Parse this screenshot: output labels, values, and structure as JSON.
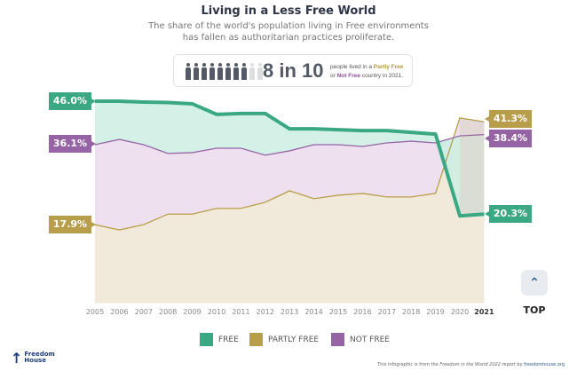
{
  "header": {
    "title": "Living in a Less Free World",
    "subtitle_line1": "The share of the world's population living in Free environments",
    "subtitle_line2": "has fallen as authoritarian practices proliferate."
  },
  "info": {
    "big": "8 in 10",
    "text1": "people lived in a ",
    "partly": "Partly Free",
    "text2": "or ",
    "not": "Not Free",
    "text3": " country in 2021.",
    "people_total": 10,
    "people_highlighted": 8
  },
  "colors": {
    "free": "#3aa882",
    "partly_free": "#b89e4b",
    "not_free": "#9664a4",
    "free_fill": "#cdeee4",
    "not_free_fill": "#eee0ee",
    "partly_fill": "#f1eadb"
  },
  "chart_data": {
    "type": "line",
    "x": [
      2005,
      2006,
      2007,
      2008,
      2009,
      2010,
      2011,
      2012,
      2013,
      2014,
      2015,
      2016,
      2017,
      2018,
      2019,
      2020,
      2021
    ],
    "x_tick_labels": [
      "2005",
      "2006",
      "2007",
      "2008",
      "2009",
      "2010",
      "2011",
      "2012",
      "2013",
      "2014",
      "2015",
      "2016",
      "2017",
      "2018",
      "2019",
      "2020",
      "2021"
    ],
    "ylim": [
      0,
      50
    ],
    "series": [
      {
        "name": "FREE",
        "values": [
          46.0,
          46.0,
          45.8,
          45.7,
          45.4,
          43.0,
          43.2,
          43.2,
          39.7,
          39.7,
          39.5,
          39.3,
          39.3,
          38.9,
          38.5,
          19.9,
          20.3
        ]
      },
      {
        "name": "PARTLY FREE",
        "values": [
          17.9,
          16.7,
          17.9,
          20.3,
          20.3,
          21.6,
          21.6,
          23.0,
          25.6,
          23.8,
          24.6,
          25.0,
          24.2,
          24.2,
          25.0,
          42.2,
          41.3
        ]
      },
      {
        "name": "NOT FREE",
        "values": [
          36.1,
          37.3,
          36.1,
          34.1,
          34.3,
          35.3,
          35.3,
          33.7,
          34.7,
          36.1,
          36.1,
          35.7,
          36.5,
          36.9,
          36.5,
          38.1,
          38.4
        ]
      }
    ],
    "start_labels": {
      "free": "46.0%",
      "not_free": "36.1%",
      "partly_free": "17.9%"
    },
    "end_labels": {
      "partly_free": "41.3%",
      "not_free": "38.4%",
      "free": "20.3%"
    },
    "legend": [
      "FREE",
      "PARTLY FREE",
      "NOT FREE"
    ],
    "legend_position": "bottom",
    "grid": false
  },
  "top_button": {
    "icon": "chevron-up-icon",
    "label": "TOP"
  },
  "footer": {
    "logo_line1": "Freedom",
    "logo_line2": "House",
    "credit_pre": "This infographic is from the ",
    "credit_report": "Freedom in the World 2022",
    "credit_mid": " report by ",
    "credit_link": "freedomhouse.org"
  }
}
